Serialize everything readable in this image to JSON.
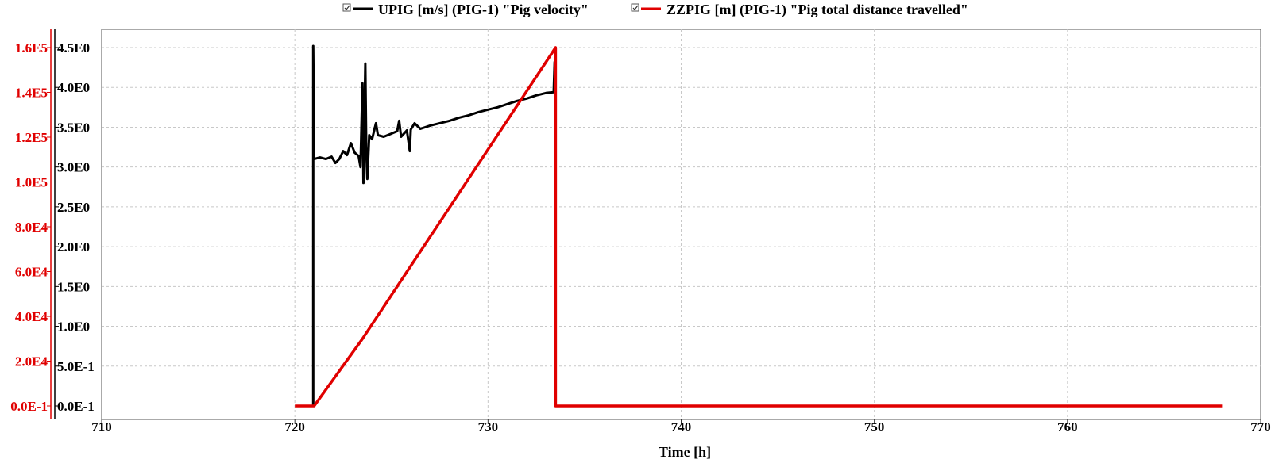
{
  "chart_data": {
    "type": "line",
    "xlabel": "Time [h]",
    "xlim": [
      710,
      770
    ],
    "x_ticks": [
      "710",
      "720",
      "730",
      "740",
      "750",
      "760",
      "770"
    ],
    "grid": true,
    "legend_placement": "top-center",
    "axes": {
      "left_inner": {
        "color": "#000000",
        "ylim": [
          0,
          4.5
        ],
        "ticks": [
          {
            "value": 0,
            "label": "0.0E-1"
          },
          {
            "value": 0.5,
            "label": "5.0E-1"
          },
          {
            "value": 1.0,
            "label": "1.0E0"
          },
          {
            "value": 1.5,
            "label": "1.5E0"
          },
          {
            "value": 2.0,
            "label": "2.0E0"
          },
          {
            "value": 2.5,
            "label": "2.5E0"
          },
          {
            "value": 3.0,
            "label": "3.0E0"
          },
          {
            "value": 3.5,
            "label": "3.5E0"
          },
          {
            "value": 4.0,
            "label": "4.0E0"
          },
          {
            "value": 4.5,
            "label": "4.5E0"
          }
        ]
      },
      "left_outer": {
        "color": "#e00000",
        "ylim": [
          0,
          160000
        ],
        "ticks": [
          {
            "value": 0,
            "label": "0.0E-1"
          },
          {
            "value": 20000,
            "label": "2.0E4"
          },
          {
            "value": 40000,
            "label": "4.0E4"
          },
          {
            "value": 60000,
            "label": "6.0E4"
          },
          {
            "value": 80000,
            "label": "8.0E4"
          },
          {
            "value": 100000,
            "label": "1.0E5"
          },
          {
            "value": 120000,
            "label": "1.2E5"
          },
          {
            "value": 140000,
            "label": "1.4E5"
          },
          {
            "value": 160000,
            "label": "1.6E5"
          }
        ]
      }
    },
    "series": [
      {
        "name": "UPIG [m/s] (PIG-1) \"Pig velocity\"",
        "color": "#000000",
        "axis": "left_inner",
        "points": [
          [
            720.95,
            0
          ],
          [
            720.95,
            4.52
          ],
          [
            721.0,
            3.1
          ],
          [
            721.3,
            3.12
          ],
          [
            721.6,
            3.1
          ],
          [
            721.9,
            3.13
          ],
          [
            722.1,
            3.05
          ],
          [
            722.3,
            3.1
          ],
          [
            722.5,
            3.2
          ],
          [
            722.7,
            3.15
          ],
          [
            722.9,
            3.3
          ],
          [
            723.1,
            3.18
          ],
          [
            723.3,
            3.14
          ],
          [
            723.4,
            3.0
          ],
          [
            723.5,
            4.05
          ],
          [
            723.55,
            2.8
          ],
          [
            723.65,
            4.3
          ],
          [
            723.7,
            3.2
          ],
          [
            723.75,
            2.85
          ],
          [
            723.85,
            3.4
          ],
          [
            724.0,
            3.35
          ],
          [
            724.2,
            3.55
          ],
          [
            724.3,
            3.4
          ],
          [
            724.6,
            3.38
          ],
          [
            725.0,
            3.42
          ],
          [
            725.3,
            3.45
          ],
          [
            725.4,
            3.58
          ],
          [
            725.5,
            3.38
          ],
          [
            725.8,
            3.46
          ],
          [
            725.95,
            3.2
          ],
          [
            726.0,
            3.47
          ],
          [
            726.2,
            3.55
          ],
          [
            726.5,
            3.48
          ],
          [
            727.0,
            3.52
          ],
          [
            727.5,
            3.55
          ],
          [
            728.0,
            3.58
          ],
          [
            728.5,
            3.62
          ],
          [
            729.0,
            3.65
          ],
          [
            729.5,
            3.69
          ],
          [
            730.0,
            3.72
          ],
          [
            730.5,
            3.75
          ],
          [
            731.0,
            3.79
          ],
          [
            731.5,
            3.83
          ],
          [
            732.0,
            3.86
          ],
          [
            732.5,
            3.9
          ],
          [
            733.0,
            3.93
          ],
          [
            733.4,
            3.94
          ],
          [
            733.45,
            4.32
          ],
          [
            733.5,
            3.92
          ],
          [
            733.5,
            0
          ]
        ]
      },
      {
        "name": "ZZPIG [m] (PIG-1) \"Pig total distance travelled\"",
        "color": "#e00000",
        "axis": "left_outer",
        "points": [
          [
            720.0,
            0
          ],
          [
            721.0,
            0
          ],
          [
            723.5,
            30000
          ],
          [
            733.5,
            160000
          ],
          [
            733.5,
            0
          ],
          [
            768.0,
            0
          ]
        ]
      }
    ]
  }
}
